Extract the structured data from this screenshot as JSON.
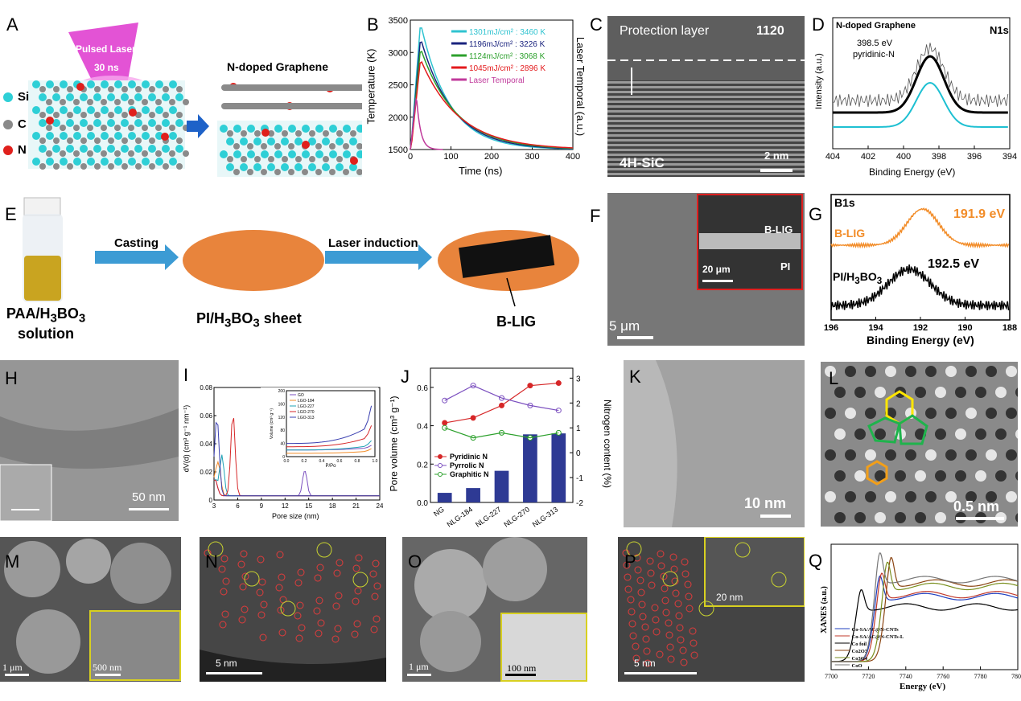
{
  "panels": {
    "A": {
      "label": "A",
      "laser": "Pulsed Laser",
      "duration": "30 ns",
      "product": "N-doped Graphene",
      "legend": [
        {
          "el": "Si",
          "color": "#2ecfd6"
        },
        {
          "el": "C",
          "color": "#8a8a8a"
        },
        {
          "el": "N",
          "color": "#e0201c"
        }
      ]
    },
    "B": {
      "label": "B",
      "xlabel": "Time (ns)",
      "ylabel": "Temperature (K)",
      "y2label": "Laser Temporal (a.u.)"
    },
    "C": {
      "label": "C",
      "top_text": "Protection layer",
      "orient": "1120",
      "bottom_text": "4H-SiC",
      "scale": "2 nm"
    },
    "D": {
      "label": "D",
      "title": "N-doped Graphene",
      "tag": "N1s",
      "annot1": "398.5 eV",
      "annot2": "pyridinic-N",
      "xlabel": "Binding Energy (eV)",
      "ylabel": "Intensity (a.u.)"
    },
    "E": {
      "label": "E",
      "step1": "Casting",
      "step2": "Laser induction",
      "caption1a": "PAA/H",
      "caption1b": "3",
      "caption1c": "BO",
      "caption1d": "3",
      "caption1e": "solution",
      "caption2a": "PI/H",
      "caption2b": "3",
      "caption2c": "BO",
      "caption2d": "3",
      "caption2e": " sheet",
      "caption3": "B-LIG"
    },
    "F": {
      "label": "F",
      "inset1": "B-LIG",
      "inset2": "PI",
      "inset_scale": "20 μm",
      "scale": "5 μm"
    },
    "G": {
      "label": "G",
      "tag": "B1s",
      "s1_name": "B-LIG",
      "s1_val": "191.9 eV",
      "s2_name_a": "PI/H",
      "s2_name_b": "3",
      "s2_name_c": "BO",
      "s2_name_d": "3",
      "s2_val": "192.5 eV",
      "xlabel": "Binding Energy (eV)"
    },
    "H": {
      "label": "H",
      "scale": "50 nm"
    },
    "I": {
      "label": "I",
      "xlabel": "Pore size (nm)",
      "ylabel": "dV(d) (cm³ g⁻¹ nm⁻¹)",
      "inset_xlabel": "P/Po",
      "inset_ylabel": "Volume (cm³ g⁻¹)"
    },
    "J": {
      "label": "J",
      "ylabel": "Pore volume (cm³ g⁻¹)",
      "y2label": "Nitrogen content (%)",
      "legend": [
        "Pyridinic N",
        "Pyrrolic N",
        "Graphitic N"
      ]
    },
    "K": {
      "label": "K",
      "scale": "10 nm"
    },
    "L": {
      "label": "L",
      "scale": "0.5 nm"
    },
    "M": {
      "label": "M",
      "scale": "1 μm",
      "inset_scale": "500 nm"
    },
    "N": {
      "label": "N",
      "scale": "5 nm"
    },
    "O": {
      "label": "O",
      "scale": "1 μm",
      "inset_scale": "100 nm"
    },
    "P": {
      "label": "P",
      "scale": "5 nm",
      "inset_scale": "20 nm"
    },
    "Q": {
      "label": "Q",
      "xlabel": "Energy (eV)",
      "ylabel": "XANES (a.u.)"
    }
  },
  "chart_data": [
    {
      "panel": "B",
      "type": "line",
      "xlim": [
        0,
        400
      ],
      "ylim": [
        1500,
        3500
      ],
      "xticks": [
        0,
        100,
        200,
        300,
        400
      ],
      "yticks": [
        1500,
        2000,
        2500,
        3000,
        3500
      ],
      "series": [
        {
          "name": "1301mJ/cm² : 3460 K",
          "color": "#2fc3d0",
          "peak": 3460
        },
        {
          "name": "1196mJ/cm² : 3226 K",
          "color": "#1a237e",
          "peak": 3226
        },
        {
          "name": "1124mJ/cm² : 3068 K",
          "color": "#2ca02c",
          "peak": 3068
        },
        {
          "name": "1045mJ/cm² : 2896 K",
          "color": "#e31a1c",
          "peak": 2896
        },
        {
          "name": "Laser Temporal",
          "color": "#c0399b",
          "peak": 2330
        }
      ]
    },
    {
      "panel": "D",
      "type": "line",
      "xlim": [
        404,
        394
      ],
      "xticks": [
        404,
        402,
        400,
        398,
        396,
        394
      ],
      "peak": 398.5
    },
    {
      "panel": "G",
      "type": "line",
      "xlim": [
        196,
        188
      ],
      "xticks": [
        196,
        194,
        192,
        190,
        188
      ],
      "series": [
        {
          "name": "B-LIG",
          "color": "#f28c28",
          "peak": 191.9
        },
        {
          "name": "PI/H3BO3",
          "color": "#000000",
          "peak": 192.5
        }
      ]
    },
    {
      "panel": "I",
      "type": "line",
      "xlim": [
        3,
        24
      ],
      "ylim": [
        0,
        0.08
      ],
      "xticks": [
        3,
        6,
        9,
        12,
        15,
        18,
        21,
        24
      ],
      "yticks": [
        0,
        0.02,
        0.04,
        0.06,
        0.08
      ],
      "series": [
        {
          "name": "GO",
          "color": "#7b4fbf"
        },
        {
          "name": "LGO-184",
          "color": "#f28c28"
        },
        {
          "name": "LGO-227",
          "color": "#1fa3b5"
        },
        {
          "name": "LGO-270",
          "color": "#d62728"
        },
        {
          "name": "LGO-313",
          "color": "#3a3fb0"
        }
      ],
      "inset": {
        "xlim": [
          0,
          1
        ],
        "ylim": [
          0,
          200
        ],
        "xticks": [
          0.0,
          0.2,
          0.4,
          0.6,
          0.8,
          1.0
        ],
        "yticks": [
          0,
          20,
          40,
          60,
          80,
          100,
          120,
          140,
          160,
          180,
          200
        ]
      }
    },
    {
      "panel": "J",
      "type": "bar",
      "categories": [
        "NG",
        "NLG-184",
        "NLG-227",
        "NLG-270",
        "NLG-313"
      ],
      "values": [
        0.05,
        0.075,
        0.165,
        0.355,
        0.36
      ],
      "ylim": [
        0.0,
        0.7
      ],
      "yticks": [
        0.0,
        0.2,
        0.4,
        0.6
      ],
      "y2lim": [
        -2,
        3.4
      ],
      "y2ticks": [
        -2,
        -1,
        0,
        1,
        2,
        3
      ],
      "series": [
        {
          "name": "Pyridinic N",
          "color": "#d62728",
          "values": [
            1.2,
            1.4,
            1.9,
            2.7,
            2.8
          ]
        },
        {
          "name": "Pyrrolic N",
          "color": "#7b4fbf",
          "values": [
            2.1,
            2.7,
            2.2,
            1.9,
            1.7
          ]
        },
        {
          "name": "Graphitic N",
          "color": "#2ca02c",
          "values": [
            1.0,
            0.6,
            0.8,
            0.6,
            0.8
          ]
        }
      ]
    },
    {
      "panel": "Q",
      "type": "line",
      "xlim": [
        7700,
        7800
      ],
      "xticks": [
        7700,
        7720,
        7740,
        7760,
        7780,
        7800
      ],
      "series": [
        {
          "name": "Co-SA/AC@N-CNTs",
          "color": "#1f3fbf"
        },
        {
          "name": "Co-SA/AC@N-CNTs-L",
          "color": "#c0392b"
        },
        {
          "name": "Co foil",
          "color": "#000000"
        },
        {
          "name": "Co2O3",
          "color": "#8b4513"
        },
        {
          "name": "Co3O4",
          "color": "#7a8f1f"
        },
        {
          "name": "CoO",
          "color": "#777777"
        }
      ]
    }
  ]
}
